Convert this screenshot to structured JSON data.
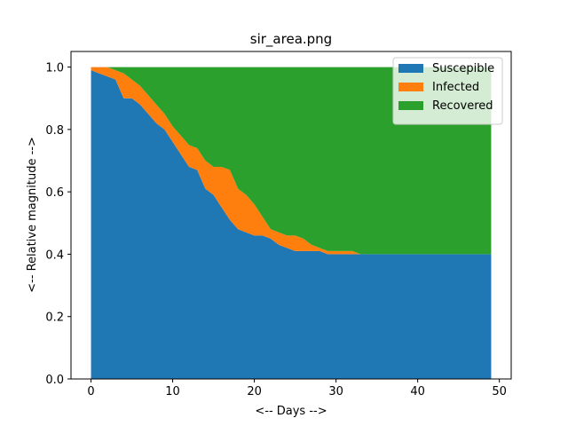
{
  "chart_data": {
    "type": "area",
    "stacked": true,
    "title": "sir_area.png",
    "xlabel": "<-- Days -->",
    "ylabel": "<-- Relative magnitude -->",
    "xlim": [
      -2.45,
      51.45
    ],
    "ylim": [
      0,
      1.05
    ],
    "xticks": [
      0,
      10,
      20,
      30,
      40,
      50
    ],
    "yticks": [
      0.0,
      0.2,
      0.4,
      0.6,
      0.8,
      1.0
    ],
    "xtick_labels": [
      "0",
      "10",
      "20",
      "30",
      "40",
      "50"
    ],
    "ytick_labels": [
      "0.0",
      "0.2",
      "0.4",
      "0.6",
      "0.8",
      "1.0"
    ],
    "legend_position": "top-right",
    "x": [
      0,
      1,
      2,
      3,
      4,
      5,
      6,
      7,
      8,
      9,
      10,
      11,
      12,
      13,
      14,
      15,
      16,
      17,
      18,
      19,
      20,
      21,
      22,
      23,
      24,
      25,
      26,
      27,
      28,
      29,
      30,
      31,
      32,
      33,
      34,
      35,
      36,
      37,
      38,
      39,
      40,
      41,
      42,
      43,
      44,
      45,
      46,
      47,
      48,
      49
    ],
    "series": [
      {
        "name": "Suscepible",
        "color": "#1f77b4",
        "values": [
          0.99,
          0.98,
          0.97,
          0.96,
          0.9,
          0.9,
          0.88,
          0.85,
          0.82,
          0.8,
          0.76,
          0.72,
          0.68,
          0.67,
          0.61,
          0.59,
          0.55,
          0.51,
          0.48,
          0.47,
          0.46,
          0.46,
          0.45,
          0.43,
          0.42,
          0.41,
          0.41,
          0.41,
          0.41,
          0.4,
          0.4,
          0.4,
          0.4,
          0.4,
          0.4,
          0.4,
          0.4,
          0.4,
          0.4,
          0.4,
          0.4,
          0.4,
          0.4,
          0.4,
          0.4,
          0.4,
          0.4,
          0.4,
          0.4,
          0.4
        ]
      },
      {
        "name": "Infected",
        "color": "#ff7f0e",
        "values": [
          0.01,
          0.02,
          0.03,
          0.03,
          0.08,
          0.06,
          0.06,
          0.06,
          0.06,
          0.05,
          0.05,
          0.06,
          0.07,
          0.07,
          0.09,
          0.09,
          0.13,
          0.16,
          0.13,
          0.12,
          0.1,
          0.06,
          0.03,
          0.04,
          0.04,
          0.05,
          0.04,
          0.02,
          0.01,
          0.01,
          0.01,
          0.01,
          0.01,
          0.0,
          0.0,
          0.0,
          0.0,
          0.0,
          0.0,
          0.0,
          0.0,
          0.0,
          0.0,
          0.0,
          0.0,
          0.0,
          0.0,
          0.0,
          0.0,
          0.0
        ]
      },
      {
        "name": "Recovered",
        "color": "#2ca02c",
        "values": [
          0.0,
          0.0,
          0.0,
          0.01,
          0.02,
          0.04,
          0.06,
          0.09,
          0.12,
          0.15,
          0.19,
          0.22,
          0.25,
          0.26,
          0.3,
          0.32,
          0.32,
          0.33,
          0.39,
          0.41,
          0.44,
          0.48,
          0.52,
          0.53,
          0.54,
          0.54,
          0.55,
          0.57,
          0.58,
          0.59,
          0.59,
          0.59,
          0.59,
          0.6,
          0.6,
          0.6,
          0.6,
          0.6,
          0.6,
          0.6,
          0.6,
          0.6,
          0.6,
          0.6,
          0.6,
          0.6,
          0.6,
          0.6,
          0.6,
          0.6
        ]
      }
    ]
  }
}
